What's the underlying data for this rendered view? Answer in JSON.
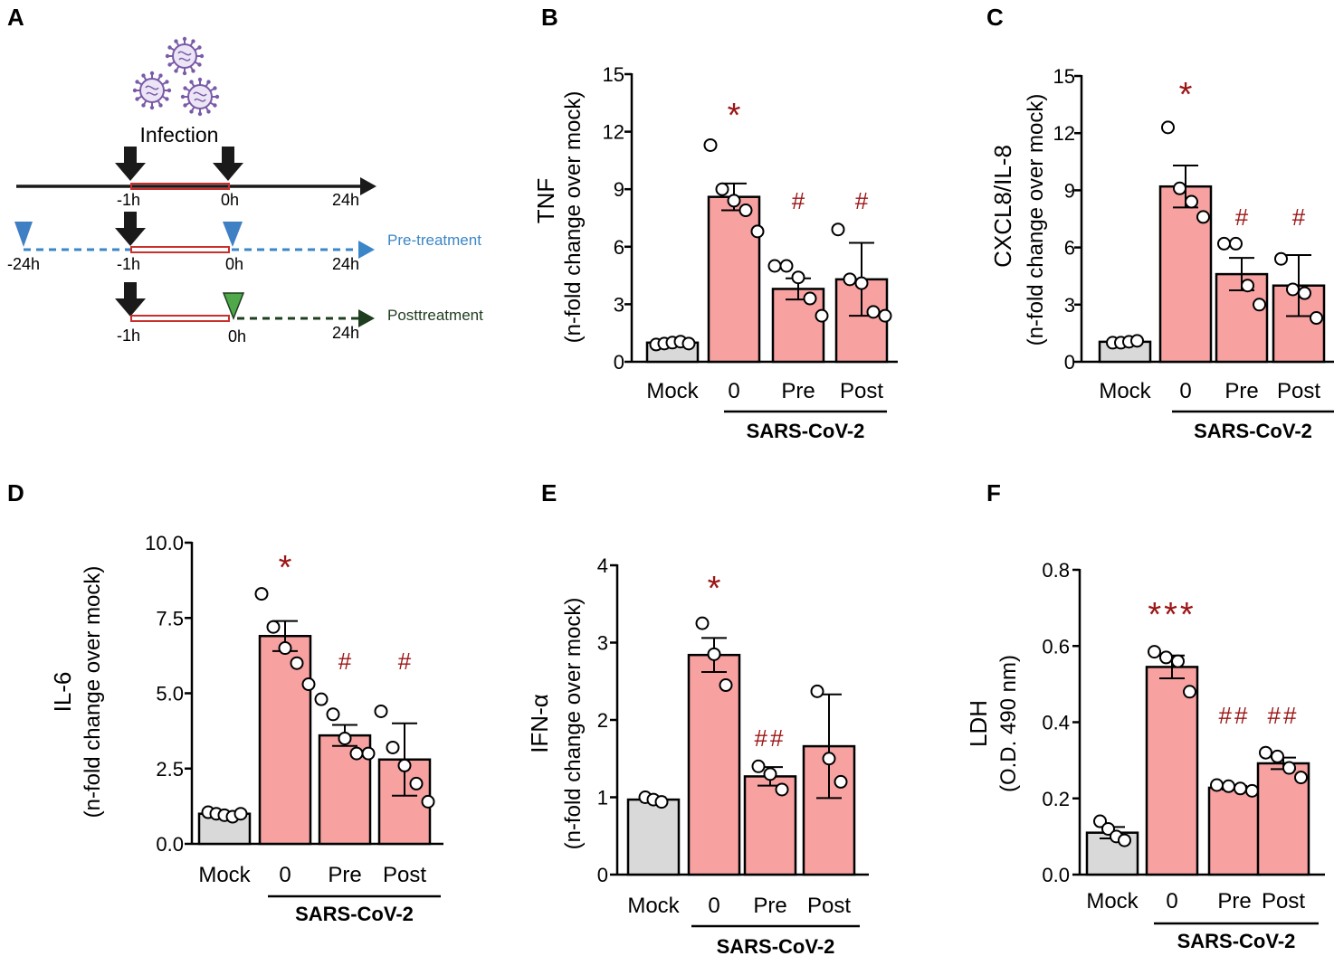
{
  "colors": {
    "mock_bar": "#d9d9d9",
    "treated_bar": "#f7a1a1",
    "significance": "#9b1515",
    "infection_line": "#c8302c",
    "pretreatment": "#3b86c8",
    "pretreatment_marker": "#3f7fc4",
    "posttreatment": "#1f3d1f",
    "posttreatment_marker": "#4fa84a",
    "virus": "#7a5ba8"
  },
  "panel_a": {
    "letter": "A",
    "infection_label": "Infection",
    "row1": {
      "labels": [
        "-1h",
        "0h",
        "24h"
      ]
    },
    "row2": {
      "labels": [
        "-24h",
        "-1h",
        "0h",
        "24h"
      ],
      "arrow_label": "Pre-treatment"
    },
    "row3": {
      "labels": [
        "-1h",
        "0h",
        "24h"
      ],
      "arrow_label": "Posttreatment"
    }
  },
  "chart_data": [
    {
      "id": "B",
      "type": "bar",
      "title": "B",
      "ylabel": "TNF",
      "ylabel2": "(n-fold change over mock)",
      "ylim": [
        0,
        15
      ],
      "yticks": [
        "0",
        "3",
        "6",
        "9",
        "12",
        "15"
      ],
      "categories": [
        "Mock",
        "0",
        "Pre",
        "Post"
      ],
      "group_label": "SARS-CoV-2",
      "values": [
        1.0,
        8.6,
        3.8,
        4.3
      ],
      "errors": [
        0.05,
        0.7,
        0.55,
        1.9
      ],
      "points": [
        [
          0.9,
          0.95,
          1.0,
          1.05,
          0.95
        ],
        [
          11.3,
          9.0,
          8.4,
          7.9,
          6.8
        ],
        [
          5.0,
          5.0,
          4.4,
          3.3,
          2.4
        ],
        [
          6.9,
          4.3,
          4.1,
          2.6,
          2.4
        ]
      ],
      "significance": [
        "",
        "*",
        "#",
        "#"
      ]
    },
    {
      "id": "C",
      "type": "bar",
      "title": "C",
      "ylabel": "CXCL8/IL-8",
      "ylabel2": "(n-fold change over mock)",
      "ylim": [
        0,
        15
      ],
      "yticks": [
        "0",
        "3",
        "6",
        "9",
        "12",
        "15"
      ],
      "categories": [
        "Mock",
        "0",
        "Pre",
        "Post"
      ],
      "group_label": "SARS-CoV-2",
      "values": [
        1.05,
        9.2,
        4.6,
        4.0
      ],
      "errors": [
        0.05,
        1.1,
        0.85,
        1.6
      ],
      "points": [
        [
          1.0,
          1.0,
          1.05,
          1.1
        ],
        [
          12.3,
          9.1,
          8.4,
          7.6
        ],
        [
          6.2,
          6.2,
          4.0,
          3.0
        ],
        [
          5.4,
          3.8,
          3.6,
          2.3
        ]
      ],
      "significance": [
        "",
        "*",
        "#",
        "#"
      ]
    },
    {
      "id": "D",
      "type": "bar",
      "title": "D",
      "ylabel": "IL-6",
      "ylabel2": "(n-fold change over mock)",
      "ylim": [
        0,
        10
      ],
      "yticks": [
        "0.0",
        "2.5",
        "5.0",
        "7.5",
        "10.0"
      ],
      "categories": [
        "Mock",
        "0",
        "Pre",
        "Post"
      ],
      "group_label": "SARS-CoV-2",
      "values": [
        1.0,
        6.9,
        3.6,
        2.8
      ],
      "errors": [
        0.05,
        0.5,
        0.35,
        1.2
      ],
      "points": [
        [
          1.05,
          1.0,
          0.95,
          0.9,
          1.0
        ],
        [
          8.3,
          7.2,
          6.5,
          6.0,
          5.3
        ],
        [
          4.8,
          4.3,
          3.5,
          3.0,
          3.0
        ],
        [
          4.4,
          3.2,
          2.6,
          2.0,
          1.4
        ]
      ],
      "significance": [
        "",
        "*",
        "#",
        "#"
      ]
    },
    {
      "id": "E",
      "type": "bar",
      "title": "E",
      "ylabel": "IFN-α",
      "ylabel2": "(n-fold change over mock)",
      "ylim": [
        0,
        4
      ],
      "yticks": [
        "0",
        "1",
        "2",
        "3",
        "4"
      ],
      "categories": [
        "Mock",
        "0",
        "Pre",
        "Post"
      ],
      "group_label": "SARS-CoV-2",
      "values": [
        0.97,
        2.84,
        1.27,
        1.66
      ],
      "errors": [
        0.03,
        0.22,
        0.12,
        0.67
      ],
      "points": [
        [
          1.0,
          0.97,
          0.94
        ],
        [
          3.25,
          2.85,
          2.45
        ],
        [
          1.4,
          1.3,
          1.1
        ],
        [
          2.37,
          1.5,
          1.2
        ]
      ],
      "significance": [
        "",
        "*",
        "##",
        ""
      ]
    },
    {
      "id": "F",
      "type": "bar",
      "title": "F",
      "ylabel": "LDH",
      "ylabel2": "(O.D. 490 nm)",
      "ylim": [
        0,
        0.8
      ],
      "yticks": [
        "0.0",
        "0.2",
        "0.4",
        "0.6",
        "0.8"
      ],
      "categories": [
        "Mock",
        "0",
        "Pre",
        "Post"
      ],
      "group_label": "SARS-CoV-2",
      "values": [
        0.11,
        0.545,
        0.228,
        0.292
      ],
      "errors": [
        0.015,
        0.03,
        0.005,
        0.015
      ],
      "points": [
        [
          0.14,
          0.12,
          0.1,
          0.09
        ],
        [
          0.585,
          0.57,
          0.56,
          0.48
        ],
        [
          0.235,
          0.232,
          0.226,
          0.22
        ],
        [
          0.32,
          0.31,
          0.28,
          0.255
        ]
      ],
      "significance": [
        "",
        "***",
        "##",
        "##"
      ]
    }
  ]
}
